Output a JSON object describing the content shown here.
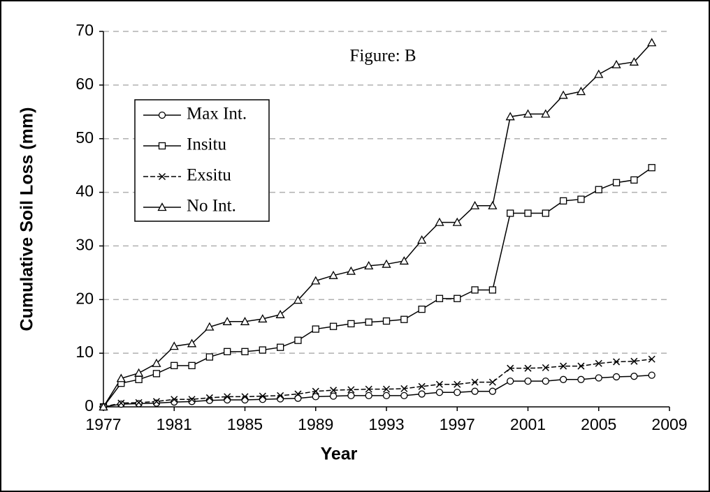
{
  "chart_data": {
    "type": "line",
    "annotation": "Figure: B",
    "xlabel": "Year",
    "ylabel": "Cumulative Soil Loss (mm)",
    "x": [
      1977,
      1978,
      1979,
      1980,
      1981,
      1982,
      1983,
      1984,
      1985,
      1986,
      1987,
      1988,
      1989,
      1990,
      1991,
      1992,
      1993,
      1994,
      1995,
      1996,
      1997,
      1998,
      1999,
      2000,
      2001,
      2002,
      2003,
      2004,
      2005,
      2006,
      2007,
      2008
    ],
    "series": [
      {
        "name": "Max Int.",
        "color": "#000000",
        "marker": "circle",
        "dashed": false,
        "values": [
          0,
          0.5,
          0.6,
          0.7,
          0.9,
          1.0,
          1.2,
          1.3,
          1.3,
          1.4,
          1.5,
          1.6,
          1.9,
          2.0,
          2.1,
          2.1,
          2.1,
          2.1,
          2.4,
          2.7,
          2.7,
          2.9,
          2.9,
          4.8,
          4.8,
          4.8,
          5.1,
          5.1,
          5.4,
          5.6,
          5.7,
          5.9
        ]
      },
      {
        "name": "Insitu",
        "color": "#000000",
        "marker": "square",
        "dashed": false,
        "values": [
          0,
          4.4,
          5.1,
          6.2,
          7.7,
          7.7,
          9.3,
          10.3,
          10.3,
          10.6,
          11.1,
          12.4,
          14.5,
          15.0,
          15.5,
          15.8,
          16.0,
          16.3,
          18.2,
          20.2,
          20.2,
          21.8,
          21.8,
          36.1,
          36.1,
          36.1,
          38.4,
          38.7,
          40.5,
          41.8,
          42.3,
          44.6
        ]
      },
      {
        "name": "Exsitu",
        "color": "#000000",
        "marker": "x",
        "dashed": true,
        "values": [
          0,
          0.7,
          0.8,
          1.0,
          1.4,
          1.4,
          1.7,
          1.9,
          1.9,
          2.0,
          2.1,
          2.4,
          2.9,
          3.1,
          3.2,
          3.3,
          3.3,
          3.4,
          3.8,
          4.2,
          4.2,
          4.6,
          4.6,
          7.2,
          7.2,
          7.3,
          7.6,
          7.6,
          8.1,
          8.4,
          8.5,
          8.9
        ]
      },
      {
        "name": "No Int.",
        "color": "#000000",
        "marker": "triangle",
        "dashed": false,
        "values": [
          0,
          5.3,
          6.3,
          8.1,
          11.3,
          11.8,
          14.9,
          15.9,
          15.9,
          16.4,
          17.2,
          19.9,
          23.5,
          24.5,
          25.3,
          26.3,
          26.6,
          27.2,
          31.1,
          34.4,
          34.4,
          37.5,
          37.5,
          54.1,
          54.6,
          54.6,
          58.1,
          58.8,
          62,
          63.8,
          64.3,
          67.9
        ]
      }
    ],
    "xlim": [
      1977,
      2009
    ],
    "xticks": [
      1977,
      1981,
      1985,
      1989,
      1993,
      1997,
      2001,
      2005,
      2009
    ],
    "ylim": [
      0,
      70
    ],
    "yticks": [
      0,
      10,
      20,
      30,
      40,
      50,
      60,
      70
    ],
    "grid": true,
    "legend": "upper left"
  }
}
